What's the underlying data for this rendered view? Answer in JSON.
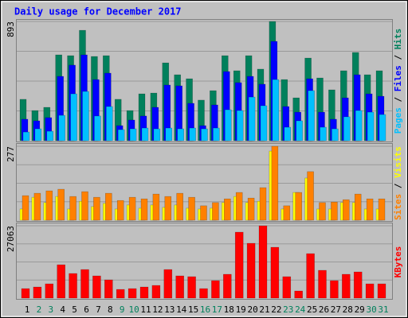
{
  "chart_data": [
    {
      "type": "bar",
      "title": "Daily usage for December 2017",
      "ylim": [
        0,
        893
      ],
      "yticks": [
        893
      ],
      "legend_separator": " / ",
      "series": [
        {
          "name": "Hits",
          "color": "#00805c",
          "values": [
            310,
            226,
            250,
            643,
            637,
            827,
            631,
            637,
            310,
            226,
            351,
            357,
            583,
            494,
            464,
            304,
            375,
            637,
            524,
            637,
            536,
            893,
            458,
            321,
            619,
            470,
            381,
            524,
            661,
            494,
            524
          ]
        },
        {
          "name": "Files",
          "color": "#0000ff",
          "values": [
            161,
            149,
            173,
            482,
            566,
            643,
            458,
            506,
            113,
            155,
            185,
            250,
            417,
            411,
            280,
            113,
            268,
            518,
            435,
            482,
            423,
            744,
            256,
            214,
            464,
            214,
            161,
            321,
            494,
            351,
            333
          ]
        },
        {
          "name": "Pages",
          "color": "#00c0ff",
          "values": [
            65,
            89,
            71,
            190,
            351,
            369,
            185,
            256,
            83,
            89,
            95,
            89,
            95,
            89,
            95,
            89,
            95,
            232,
            226,
            327,
            262,
            458,
            101,
            149,
            375,
            101,
            89,
            179,
            226,
            214,
            196
          ]
        }
      ]
    },
    {
      "type": "bar",
      "ylim": [
        0,
        277
      ],
      "yticks": [
        277
      ],
      "legend_separator": " / ",
      "series": [
        {
          "name": "Visits",
          "color": "#ffff00",
          "values": [
            42,
            86,
            66,
            89,
            42,
            71,
            51,
            63,
            42,
            57,
            45,
            57,
            48,
            57,
            45,
            42,
            45,
            66,
            89,
            66,
            71,
            259,
            42,
            104,
            158,
            42,
            42,
            66,
            66,
            42,
            42
          ]
        },
        {
          "name": "Sites",
          "color": "#ff8000",
          "values": [
            92,
            101,
            110,
            116,
            89,
            107,
            86,
            101,
            74,
            86,
            80,
            98,
            89,
            101,
            86,
            54,
            66,
            80,
            104,
            83,
            122,
            277,
            54,
            104,
            182,
            66,
            68,
            77,
            98,
            80,
            80
          ]
        }
      ]
    },
    {
      "type": "bar",
      "ylim": [
        0,
        27063
      ],
      "yticks": [
        27063
      ],
      "categories": [
        "1",
        "2",
        "3",
        "4",
        "5",
        "6",
        "7",
        "8",
        "9",
        "10",
        "11",
        "12",
        "13",
        "14",
        "15",
        "16",
        "17",
        "18",
        "19",
        "20",
        "21",
        "22",
        "23",
        "24",
        "25",
        "26",
        "27",
        "28",
        "29",
        "30",
        "31"
      ],
      "category_colors": [
        "#000000",
        "#00805c",
        "#00805c",
        "#000000",
        "#000000",
        "#000000",
        "#000000",
        "#000000",
        "#00805c",
        "#00805c",
        "#000000",
        "#000000",
        "#000000",
        "#000000",
        "#000000",
        "#00805c",
        "#00805c",
        "#000000",
        "#000000",
        "#000000",
        "#000000",
        "#000000",
        "#00805c",
        "#00805c",
        "#000000",
        "#000000",
        "#000000",
        "#000000",
        "#000000",
        "#00805c",
        "#00805c"
      ],
      "series": [
        {
          "name": "KBytes",
          "color": "#ff0000",
          "values": [
            3569,
            4164,
            5353,
            12491,
            9219,
            10706,
            8327,
            6840,
            3271,
            3569,
            4164,
            4758,
            10706,
            8327,
            8030,
            3569,
            6543,
            8922,
            24684,
            20520,
            27063,
            19033,
            8030,
            2677,
            16654,
            10409,
            6543,
            8922,
            9814,
            5353,
            5353
          ]
        }
      ]
    }
  ]
}
